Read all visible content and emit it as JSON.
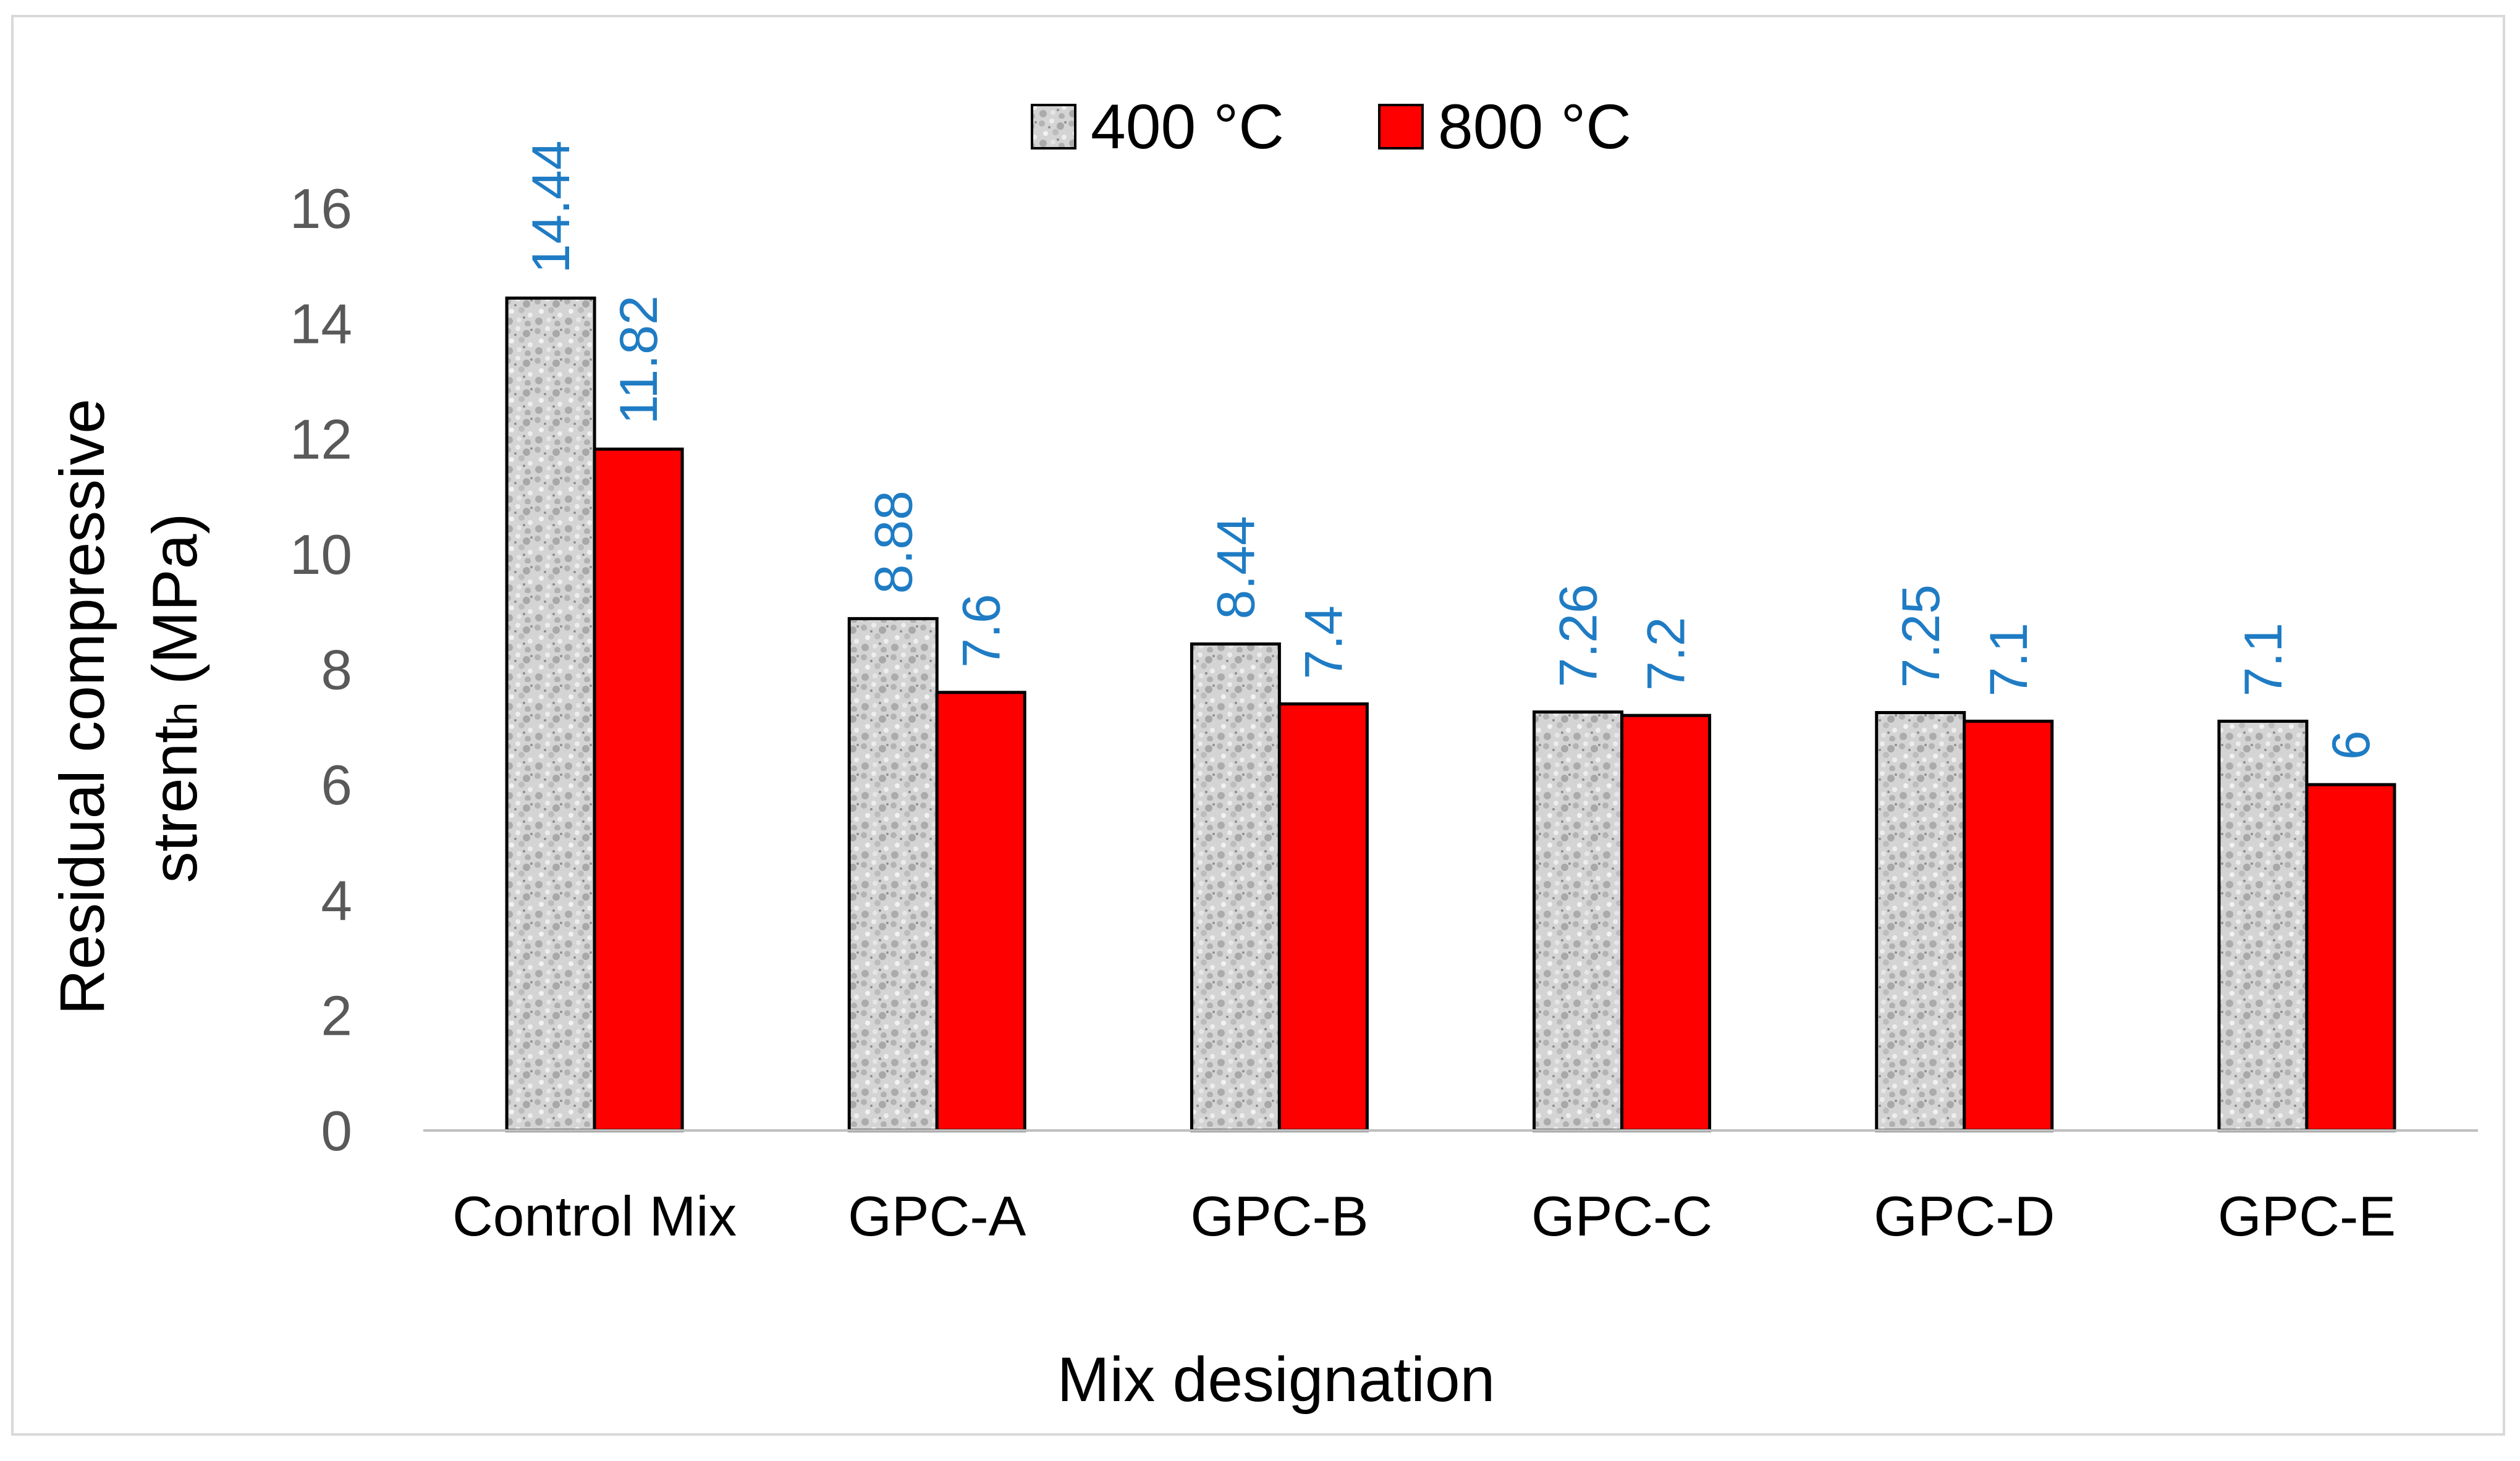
{
  "chart_data": {
    "type": "bar",
    "title": "",
    "xlabel": "Mix designation",
    "ylabel_line1": "Residual compressive",
    "ylabel_line2_main": "strent",
    "ylabel_line2_sub": "h",
    "ylabel_line2_rest": " (MPa)",
    "ylim": [
      0,
      16
    ],
    "yticks": [
      "0",
      "2",
      "4",
      "6",
      "8",
      "10",
      "12",
      "14",
      "16"
    ],
    "grid": false,
    "legend_position": "top-center",
    "categories": [
      "Control Mix",
      "GPC-A",
      "GPC-B",
      "GPC-C",
      "GPC-D",
      "GPC-E"
    ],
    "series": [
      {
        "name": "400 °C",
        "values": [
          14.44,
          8.88,
          8.44,
          7.26,
          7.25,
          7.1
        ],
        "labels": [
          "14.44",
          "8.88",
          "8.44",
          "7.26",
          "7.25",
          "7.1"
        ],
        "color": "#d9d9d9",
        "pattern": "speckled-gray"
      },
      {
        "name": "800 °C",
        "values": [
          11.82,
          7.6,
          7.4,
          7.2,
          7.1,
          6
        ],
        "labels": [
          "11.82",
          "7.6",
          "7.4",
          "7.2",
          "7.1",
          "6"
        ],
        "color": "#ff0000",
        "pattern": "solid"
      }
    ]
  },
  "colors": {
    "axis": "#bfbfbf",
    "bar_border": "#000000",
    "data_label": "#1f7cc4",
    "tick_text": "#595959"
  }
}
